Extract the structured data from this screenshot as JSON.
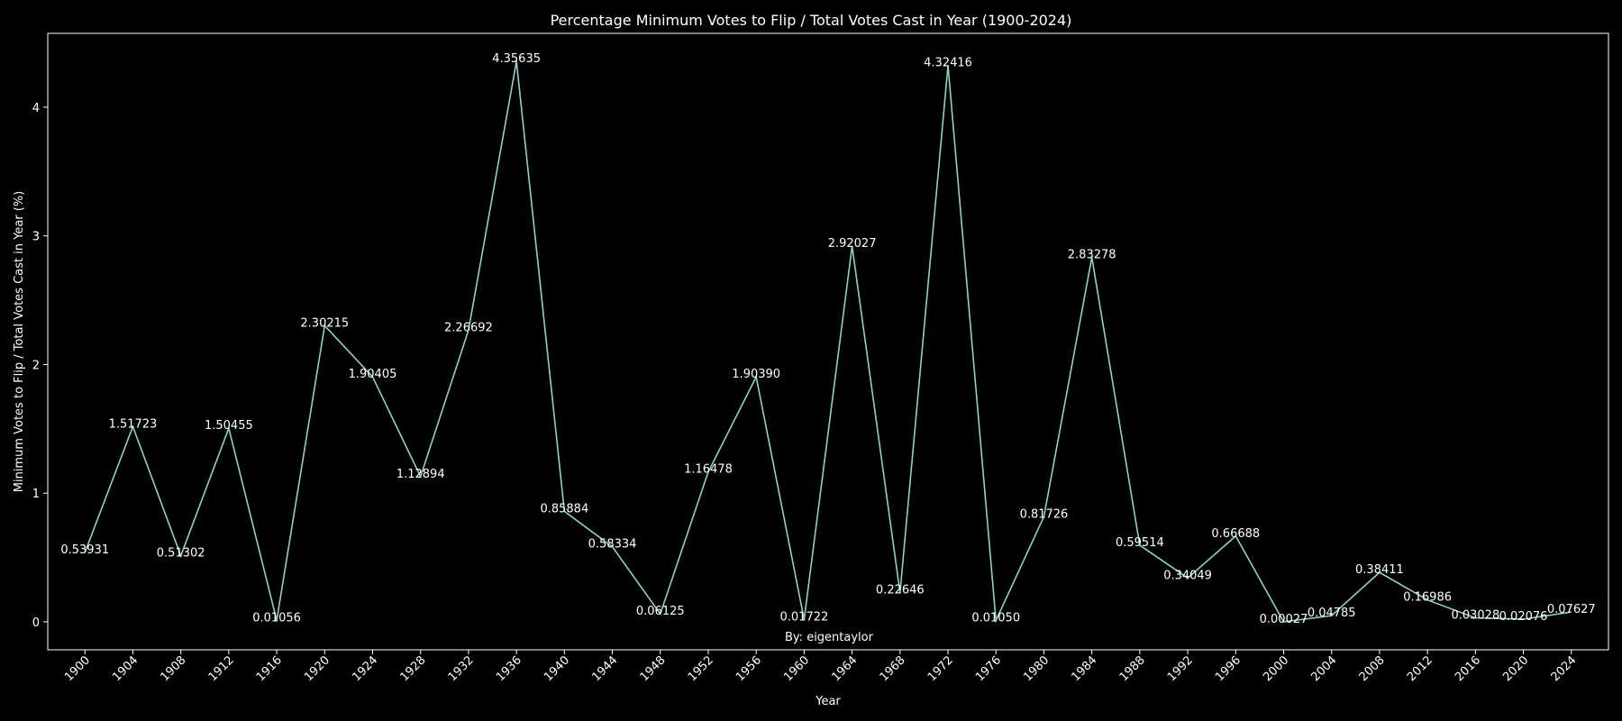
{
  "chart_data": {
    "type": "line",
    "title": "Percentage Minimum Votes to Flip / Total Votes Cast in Year (1900-2024)",
    "xlabel": "Year",
    "ylabel": "Minimum Votes to Flip / Total Votes Cast in Year (%)",
    "annotation": "By: eigentaylor",
    "x": [
      1900,
      1904,
      1908,
      1912,
      1916,
      1920,
      1924,
      1928,
      1932,
      1936,
      1940,
      1944,
      1948,
      1952,
      1956,
      1960,
      1964,
      1968,
      1972,
      1976,
      1980,
      1984,
      1988,
      1992,
      1996,
      2000,
      2004,
      2008,
      2012,
      2016,
      2020,
      2024
    ],
    "x_tick_labels": [
      "1900",
      "1904",
      "1908",
      "1912",
      "1916",
      "1920",
      "1924",
      "1928",
      "1932",
      "1936",
      "1940",
      "1944",
      "1948",
      "1952",
      "1956",
      "1960",
      "1964",
      "1968",
      "1972",
      "1976",
      "1980",
      "1984",
      "1988",
      "1992",
      "1996",
      "2000",
      "2004",
      "2008",
      "2012",
      "2016",
      "2020",
      "2024"
    ],
    "values": [
      0.53931,
      1.51723,
      0.51302,
      1.50455,
      0.01056,
      2.30215,
      1.90405,
      1.12894,
      2.26692,
      4.35635,
      0.85884,
      0.58334,
      0.06125,
      1.16478,
      1.9039,
      0.01722,
      2.92027,
      0.22646,
      4.32416,
      0.0105,
      0.81726,
      2.83278,
      0.59514,
      0.34049,
      0.66688,
      0.00027,
      0.04785,
      0.38411,
      0.16986,
      0.03028,
      0.02076,
      0.07627
    ],
    "data_labels": [
      "0.53931",
      "1.51723",
      "0.51302",
      "1.50455",
      "0.01056",
      "2.30215",
      "1.90405",
      "1.12894",
      "2.26692",
      "4.35635",
      "0.85884",
      "0.58334",
      "0.06125",
      "1.16478",
      "1.90390",
      "0.01722",
      "2.92027",
      "0.22646",
      "4.32416",
      "0.01050",
      "0.81726",
      "2.83278",
      "0.59514",
      "0.34049",
      "0.66688",
      "0.00027",
      "0.04785",
      "0.38411",
      "0.16986",
      "0.03028",
      "0.02076",
      "0.07627"
    ],
    "y_ticks": [
      0,
      1,
      2,
      3,
      4
    ],
    "y_tick_labels": [
      "0",
      "1",
      "2",
      "3",
      "4"
    ],
    "xlim": [
      1896.9,
      2027.1
    ],
    "ylim": [
      -0.21754,
      4.57416
    ],
    "grid": false,
    "colors": {
      "background": "#000000",
      "line": "#8dd3c7",
      "text": "#ffffff",
      "axes": "#ffffff"
    }
  }
}
